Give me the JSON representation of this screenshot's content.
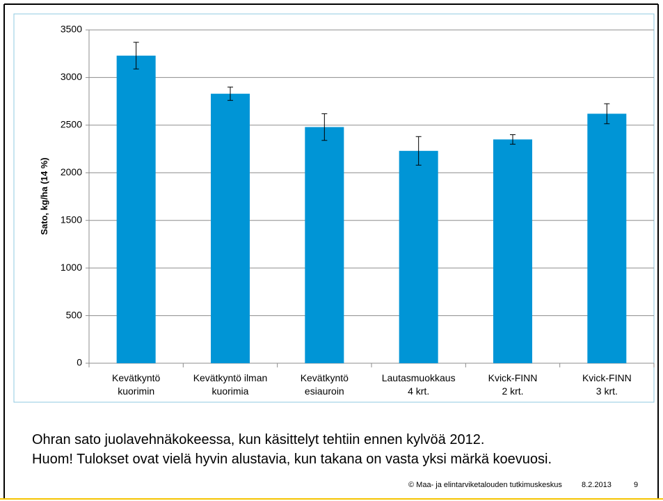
{
  "chart_data": {
    "type": "bar",
    "ylabel": "Sato, kg/ha (14 %)",
    "categories": [
      [
        "Kevätkyntö",
        "kuorimin"
      ],
      [
        "Kevätkyntö ilman",
        "kuorimia"
      ],
      [
        "Kevätkyntö",
        "esiauroin"
      ],
      [
        "Lautasmuokkaus",
        "4 krt."
      ],
      [
        "Kvick-FINN",
        "2 krt."
      ],
      [
        "Kvick-FINN",
        "3 krt."
      ]
    ],
    "values": [
      3230,
      2830,
      2480,
      2230,
      2350,
      2620
    ],
    "errors": [
      140,
      70,
      140,
      150,
      50,
      105
    ],
    "color": "#0095d6",
    "ylim": [
      0,
      3500
    ],
    "yticks": [
      0,
      500,
      1000,
      1500,
      2000,
      2500,
      3000,
      3500
    ],
    "grid": true
  },
  "caption": [
    "Ohran sato juolavehnäkokeessa, kun käsittelyt tehtiin ennen kylvöä 2012.",
    "Huom! Tulokset ovat vielä hyvin alustavia, kun takana on vasta yksi märkä koevuosi."
  ],
  "footer": {
    "organization": "© Maa- ja elintarviketalouden tutkimuskeskus",
    "date": "8.2.2013",
    "page": "9"
  }
}
